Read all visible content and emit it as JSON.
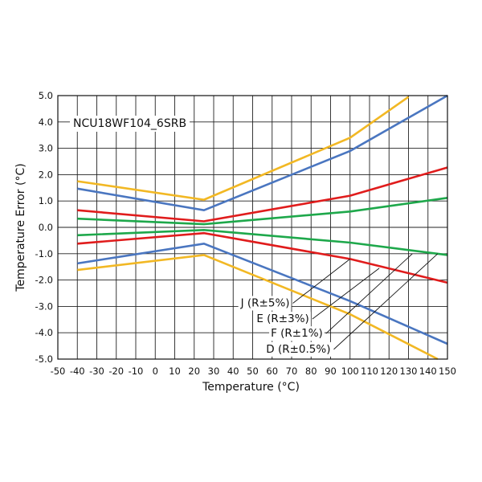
{
  "chart_data": {
    "type": "line",
    "title": "NCU18WF104_6SRB",
    "xlabel": "Temperature (°C)",
    "ylabel": "Temperature Error (°C)",
    "xlim": [
      -50,
      150
    ],
    "ylim": [
      -5.0,
      5.0
    ],
    "grid": true,
    "x_ticks": [
      -50,
      -40,
      -30,
      -20,
      -10,
      0,
      10,
      20,
      30,
      40,
      50,
      60,
      70,
      80,
      90,
      100,
      110,
      120,
      130,
      140,
      150
    ],
    "x_tick_labels": [
      "-50",
      "-40",
      "-30",
      "-20",
      "-10",
      "0",
      "10",
      "20",
      "30",
      "40",
      "50",
      "60",
      "70",
      "80",
      "90",
      "100",
      "110",
      "120",
      "130",
      "140",
      "150"
    ],
    "y_ticks": [
      5.0,
      4.0,
      3.0,
      2.0,
      1.0,
      0.0,
      -1.0,
      -2.0,
      -3.0,
      -4.0,
      -5.0
    ],
    "y_tick_labels": [
      "5.0",
      "4.0",
      "3.0",
      "2.0",
      "1.0",
      "0.0",
      "-1.0",
      "-2.0",
      "-3.0",
      "-4.0",
      "-5.0"
    ],
    "series": [
      {
        "name": "J (R±5%) upper",
        "color": "#f2b824",
        "x": [
          -40,
          25,
          100,
          130
        ],
        "y": [
          1.75,
          1.05,
          3.4,
          4.95
        ]
      },
      {
        "name": "J (R±5%) lower",
        "color": "#f2b824",
        "x": [
          -40,
          25,
          100,
          145
        ],
        "y": [
          -1.62,
          -1.05,
          -3.3,
          -5.0
        ]
      },
      {
        "name": "E (R±3%) upper",
        "color": "#4a76c0",
        "x": [
          -40,
          25,
          100,
          150
        ],
        "y": [
          1.47,
          0.65,
          2.9,
          5.0
        ]
      },
      {
        "name": "E (R±3%) lower",
        "color": "#4a76c0",
        "x": [
          -40,
          25,
          100,
          150
        ],
        "y": [
          -1.37,
          -0.62,
          -2.8,
          -4.42
        ]
      },
      {
        "name": "F (R±1%) upper",
        "color": "#e01c1c",
        "x": [
          -40,
          25,
          100,
          150
        ],
        "y": [
          0.65,
          0.23,
          1.2,
          2.27
        ]
      },
      {
        "name": "F (R±1%) lower",
        "color": "#e01c1c",
        "x": [
          -40,
          25,
          100,
          150
        ],
        "y": [
          -0.62,
          -0.22,
          -1.2,
          -2.1
        ]
      },
      {
        "name": "D (R±0.5%) upper",
        "color": "#1ea84b",
        "x": [
          -40,
          25,
          100,
          150
        ],
        "y": [
          0.33,
          0.12,
          0.6,
          1.12
        ]
      },
      {
        "name": "D (R±0.5%) lower",
        "color": "#1ea84b",
        "x": [
          -40,
          25,
          100,
          150
        ],
        "y": [
          -0.3,
          -0.1,
          -0.58,
          -1.05
        ]
      }
    ],
    "annotations": [
      {
        "label": "J (R±5%)",
        "x": 69,
        "y": -2.85,
        "target_x": 100,
        "target_y": -1.2
      },
      {
        "label": "E (R±3%)",
        "x": 79,
        "y": -3.45,
        "target_x": 115,
        "target_y": -1.55
      },
      {
        "label": "F (R±1%)",
        "x": 86,
        "y": -4.0,
        "target_x": 132,
        "target_y": -1.0
      },
      {
        "label": "D (R±0.5%)",
        "x": 90,
        "y": -4.6,
        "target_x": 145,
        "target_y": -1.0
      }
    ]
  }
}
